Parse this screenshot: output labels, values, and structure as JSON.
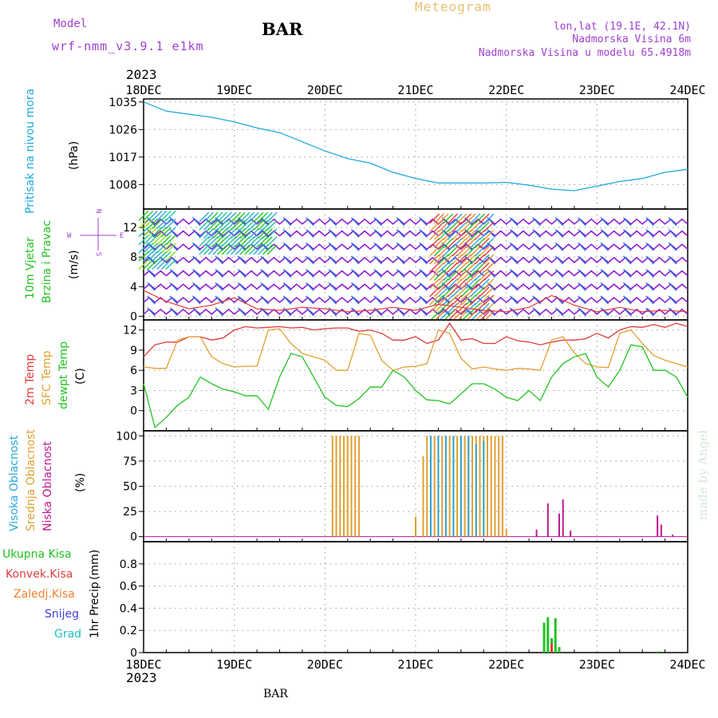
{
  "header": {
    "model_label": "Model",
    "model_name": "wrf-nmm_v3.9.1 e1km",
    "station": "BAR",
    "title": "Meteogram",
    "coords": "lon,lat (19.1E, 42.1N)",
    "altitude": "Nadmorska Visina 6m",
    "model_altitude": "Nadmorska Visina u modelu 65.4918m",
    "year": "2023",
    "footer_station": "BAR",
    "credit": "made by Angel"
  },
  "time_axis": {
    "ticks": [
      "18DEC",
      "19DEC",
      "20DEC",
      "21DEC",
      "22DEC",
      "23DEC",
      "24DEC"
    ]
  },
  "colors": {
    "pressure": "#1fa8e0",
    "t2m": "#e03c3c",
    "sfc": "#e0a030",
    "dewpt": "#22c322",
    "cloud_high": "#2aa8d8",
    "cloud_mid": "#e0a030",
    "cloud_low": "#c01890",
    "wind_barb": "#9020d0",
    "rain_total": "#22c322",
    "rain_conv": "#e03c3c",
    "rain_freeze": "#f08030",
    "snow": "#4040e0",
    "hail": "#20c0c0",
    "title_color": "#e8c070",
    "meta_color": "#a040d0"
  },
  "chart_data": [
    {
      "type": "line",
      "panel": "pressure",
      "ylabel_main": "Pritisak na nivou mora",
      "ylabel_unit": "(hPa)",
      "yticks": [
        1008,
        1017,
        1026,
        1035
      ],
      "ylim": [
        1000,
        1036
      ],
      "grid": true,
      "series": [
        {
          "x": [
            0,
            6,
            12,
            18,
            24,
            30,
            36,
            42,
            48,
            54,
            60,
            66,
            72,
            78,
            84,
            90,
            96,
            102,
            108,
            114,
            120,
            126,
            132,
            138,
            144
          ],
          "values": [
            1035,
            1032,
            1031,
            1030,
            1028.5,
            1026.5,
            1025,
            1022,
            1019,
            1016.5,
            1015,
            1012,
            1010,
            1008.5,
            1008.5,
            1008.5,
            1008.7,
            1007.8,
            1006.5,
            1006,
            1007.5,
            1009,
            1010,
            1012,
            1013
          ]
        }
      ]
    },
    {
      "type": "scatter",
      "panel": "wind",
      "ylabel_main": "10m Vjetar",
      "ylabel_sub": "Brzina i Pravac",
      "ylabel_unit": "(m/s)",
      "compass": {
        "n": "N",
        "w": "W",
        "e": "E",
        "s": "S"
      },
      "yticks": [
        0,
        4,
        8,
        12
      ],
      "ylim": [
        -0.5,
        14.5
      ],
      "grid": true,
      "speed_series": [
        {
          "name": "",
          "x": [
            0,
            6,
            12,
            18,
            24,
            30,
            36,
            42,
            48,
            54,
            60,
            66,
            72,
            78,
            84,
            90,
            96,
            102,
            108,
            114,
            120,
            126,
            132,
            138,
            144
          ],
          "values": [
            3.5,
            2,
            1,
            1.5,
            2.5,
            1,
            0.8,
            1.2,
            1,
            0.6,
            0.8,
            1.2,
            0.8,
            1.6,
            1.2,
            0.8,
            0.6,
            1.2,
            2.8,
            1.5,
            0.6,
            1.2,
            0.6,
            0.8,
            0.6
          ]
        }
      ]
    },
    {
      "type": "line",
      "panel": "temperature",
      "ylabel_t2m": "2m Temp",
      "ylabel_sfc": "SFC Temp",
      "ylabel_dew": "dewpt Temp",
      "ylabel_unit": "(C)",
      "yticks": [
        0,
        3,
        6,
        9,
        12
      ],
      "ylim": [
        -3,
        13.5
      ],
      "grid": true,
      "x": [
        0,
        3,
        6,
        9,
        12,
        15,
        18,
        21,
        24,
        27,
        30,
        33,
        36,
        39,
        42,
        45,
        48,
        51,
        54,
        57,
        60,
        63,
        66,
        69,
        72,
        75,
        78,
        81,
        84,
        87,
        90,
        93,
        96,
        99,
        102,
        105,
        108,
        111,
        114,
        117,
        120,
        123,
        126,
        129,
        132,
        135,
        138,
        141,
        144
      ],
      "series": [
        {
          "name": "2m Temp",
          "values": [
            8,
            9.8,
            10.2,
            10.2,
            11,
            11,
            10.5,
            10.8,
            12,
            12.5,
            12.3,
            12.4,
            12.5,
            12.3,
            12.4,
            12,
            12.2,
            12.3,
            12.3,
            11.8,
            12,
            11.5,
            10.5,
            10.5,
            11,
            10,
            10.5,
            13,
            10.5,
            10.7,
            10,
            10,
            11,
            10.4,
            10.2,
            9.8,
            10.2,
            10.5,
            10.5,
            10.7,
            11.5,
            10.8,
            12,
            12.5,
            12.4,
            12.8,
            12.4,
            13,
            12.5
          ]
        },
        {
          "name": "SFC Temp",
          "values": [
            6.5,
            6.3,
            6.3,
            10.5,
            11,
            11,
            8,
            7,
            6.5,
            6.6,
            6.6,
            12,
            12.2,
            10,
            8.5,
            8,
            7.5,
            6,
            6,
            11.5,
            11.2,
            7.5,
            6,
            6.5,
            6.6,
            7,
            12,
            11.5,
            7.8,
            6.2,
            6.5,
            6.2,
            6,
            6.3,
            6.2,
            6,
            10.5,
            11,
            8.6,
            7,
            6.5,
            6.4,
            11.5,
            12,
            10,
            8.2,
            7.5,
            7,
            6.5
          ]
        },
        {
          "name": "dewpt Temp",
          "values": [
            4,
            -2.5,
            -1,
            0.8,
            2,
            5,
            4,
            3.2,
            2.8,
            2.2,
            2.2,
            0.2,
            5,
            8.5,
            8,
            5,
            2,
            0.8,
            0.6,
            1.8,
            3.5,
            3.5,
            6,
            5,
            3,
            1.6,
            1.5,
            1,
            2.5,
            4,
            4,
            3.2,
            2,
            1.5,
            3,
            1.5,
            5,
            7,
            8,
            8.5,
            5,
            3.5,
            6,
            9.8,
            9.5,
            6,
            6,
            5,
            2
          ]
        }
      ]
    },
    {
      "type": "bar",
      "panel": "clouds",
      "ylabel_high": "Visoka Oblacnost",
      "ylabel_mid": "Srednja Oblacnost",
      "ylabel_low": "Niska Oblacnost",
      "ylabel_unit": "(%)",
      "yticks": [
        0,
        25,
        50,
        75,
        100
      ],
      "ylim": [
        -5,
        105
      ],
      "grid": true,
      "series": [
        {
          "name": "Srednja",
          "x": [
            50,
            51,
            52,
            53,
            54,
            55,
            56,
            57,
            72,
            74,
            75,
            76,
            77,
            78,
            79,
            80,
            81,
            82,
            83,
            84,
            85,
            86,
            87,
            88,
            89,
            90,
            91,
            92,
            93,
            94,
            95,
            96
          ],
          "values": [
            100,
            100,
            100,
            100,
            100,
            100,
            100,
            100,
            20,
            80,
            100,
            100,
            100,
            100,
            100,
            100,
            100,
            100,
            100,
            100,
            100,
            100,
            100,
            100,
            100,
            100,
            100,
            100,
            100,
            100,
            100,
            8
          ]
        },
        {
          "name": "Visoka",
          "x": [
            76,
            78,
            80,
            82,
            84,
            86,
            88,
            90
          ],
          "values": [
            100,
            100,
            100,
            100,
            100,
            100,
            92,
            95
          ]
        },
        {
          "name": "Niska",
          "x": [
            104,
            107,
            110,
            111,
            113,
            136,
            137,
            140
          ],
          "values": [
            7,
            33,
            23,
            37,
            6,
            21,
            12,
            2
          ]
        }
      ]
    },
    {
      "type": "bar",
      "panel": "precipitation",
      "ylabel_main": "1hr Precip",
      "ylabel_unit": "(mm)",
      "legend": [
        "Ukupna Kisa",
        "Konvek.Kisa",
        "Zaledj.Kisa",
        "Snijeg",
        "Grad"
      ],
      "yticks": [
        0,
        0.2,
        0.4,
        0.6,
        0.8
      ],
      "ylim": [
        0,
        1
      ],
      "grid": true,
      "series": [
        {
          "name": "Ukupna Kisa",
          "x": [
            106,
            107,
            108,
            109,
            110,
            136
          ],
          "values": [
            0.27,
            0.32,
            0.13,
            0.31,
            0.05,
            0.01
          ]
        },
        {
          "name": "Konvek.Kisa",
          "x": [
            108
          ],
          "values": [
            0.08
          ]
        }
      ]
    }
  ]
}
